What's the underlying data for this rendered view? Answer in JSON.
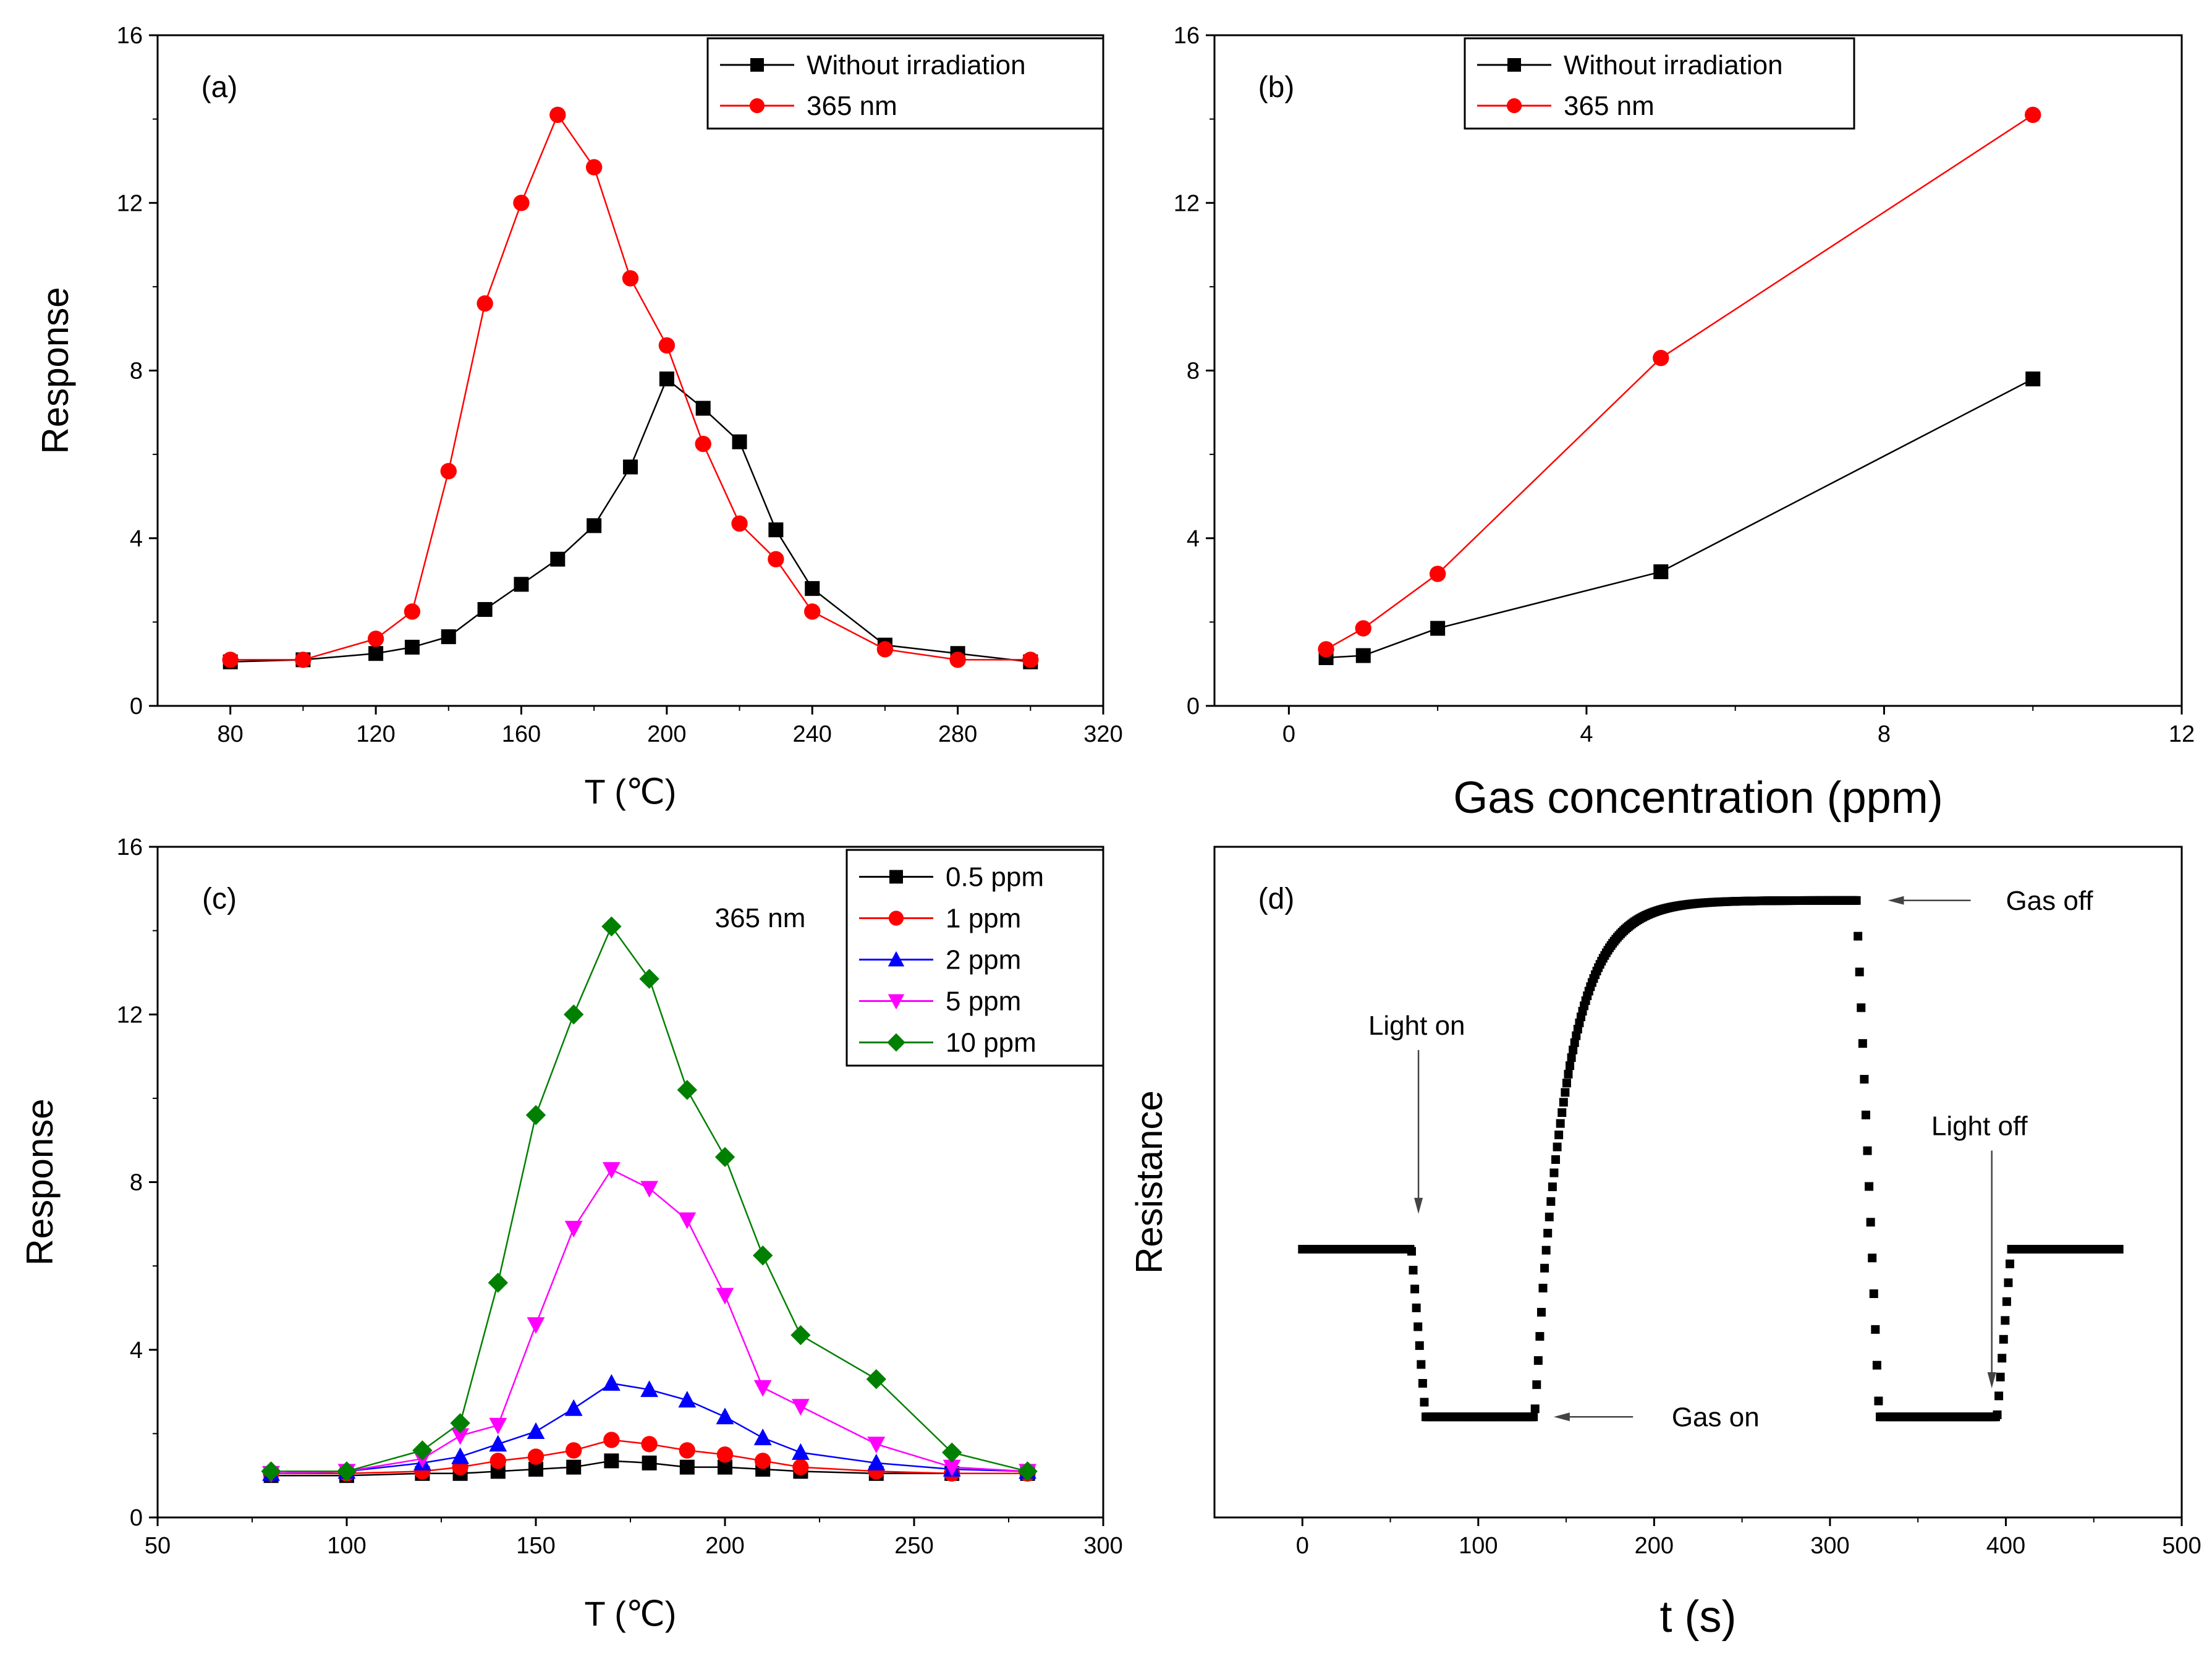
{
  "chart_data": [
    {
      "id": "a",
      "type": "line",
      "panel_label": "(a)",
      "xlabel": "T (℃)",
      "ylabel": "Response",
      "xlim": [
        60,
        320
      ],
      "ylim": [
        0,
        16
      ],
      "xticks": [
        80,
        120,
        160,
        200,
        240,
        280,
        320
      ],
      "yticks": [
        0,
        4,
        8,
        12,
        16
      ],
      "legend_position": "top-right",
      "series": [
        {
          "name": "Without irradiation",
          "color": "#000000",
          "marker": "square",
          "x": [
            80,
            100,
            120,
            130,
            140,
            150,
            160,
            170,
            180,
            190,
            200,
            210,
            220,
            230,
            240,
            260,
            280,
            300
          ],
          "y": [
            1.05,
            1.1,
            1.25,
            1.4,
            1.65,
            2.3,
            2.9,
            3.5,
            4.3,
            5.7,
            7.8,
            7.1,
            6.3,
            4.2,
            2.8,
            1.45,
            1.25,
            1.05
          ]
        },
        {
          "name": "365 nm",
          "color": "#ff0000",
          "marker": "circle",
          "x": [
            80,
            100,
            120,
            130,
            140,
            150,
            160,
            170,
            180,
            190,
            200,
            210,
            220,
            230,
            240,
            260,
            280,
            300
          ],
          "y": [
            1.1,
            1.1,
            1.6,
            2.25,
            5.6,
            9.6,
            12.0,
            14.1,
            12.85,
            10.2,
            8.6,
            6.25,
            4.35,
            3.5,
            2.25,
            1.35,
            1.1,
            1.1
          ]
        }
      ]
    },
    {
      "id": "b",
      "type": "line",
      "panel_label": "(b)",
      "xlabel": "Gas concentration (ppm)",
      "ylabel": "",
      "xlim": [
        -1,
        12
      ],
      "ylim": [
        0,
        16
      ],
      "xticks": [
        0,
        4,
        8,
        12
      ],
      "yticks": [
        0,
        4,
        8,
        12,
        16
      ],
      "legend_position": "top-left",
      "series": [
        {
          "name": "Without irradiation",
          "color": "#000000",
          "marker": "square",
          "x": [
            0.5,
            1,
            2,
            5,
            10
          ],
          "y": [
            1.15,
            1.2,
            1.85,
            3.2,
            7.8
          ]
        },
        {
          "name": "365 nm",
          "color": "#ff0000",
          "marker": "circle",
          "x": [
            0.5,
            1,
            2,
            5,
            10
          ],
          "y": [
            1.35,
            1.85,
            3.15,
            8.3,
            14.1
          ]
        }
      ]
    },
    {
      "id": "c",
      "type": "line",
      "panel_label": "(c)",
      "annotation": "365 nm",
      "xlabel": "T (℃)",
      "ylabel": "Response",
      "xlim": [
        50,
        300
      ],
      "ylim": [
        0,
        16
      ],
      "xticks": [
        50,
        100,
        150,
        200,
        250,
        300
      ],
      "yticks": [
        0,
        4,
        8,
        12,
        16
      ],
      "legend_position": "top-right",
      "series": [
        {
          "name": "0.5 ppm",
          "color": "#000000",
          "marker": "square",
          "x": [
            80,
            100,
            120,
            130,
            140,
            150,
            160,
            170,
            180,
            190,
            200,
            210,
            220,
            240,
            260,
            280
          ],
          "y": [
            1.0,
            1.0,
            1.05,
            1.05,
            1.1,
            1.15,
            1.2,
            1.35,
            1.3,
            1.2,
            1.2,
            1.15,
            1.1,
            1.05,
            1.05,
            1.05
          ]
        },
        {
          "name": "1 ppm",
          "color": "#ff0000",
          "marker": "circle",
          "x": [
            80,
            100,
            120,
            130,
            140,
            150,
            160,
            170,
            180,
            190,
            200,
            210,
            220,
            240,
            260,
            280
          ],
          "y": [
            1.05,
            1.05,
            1.1,
            1.2,
            1.35,
            1.45,
            1.6,
            1.85,
            1.75,
            1.6,
            1.5,
            1.35,
            1.2,
            1.1,
            1.05,
            1.05
          ]
        },
        {
          "name": "2 ppm",
          "color": "#0000ff",
          "marker": "triangle-up",
          "x": [
            80,
            100,
            120,
            130,
            140,
            150,
            160,
            170,
            180,
            190,
            200,
            210,
            220,
            240,
            260,
            280
          ],
          "y": [
            1.05,
            1.1,
            1.3,
            1.45,
            1.75,
            2.05,
            2.6,
            3.2,
            3.05,
            2.8,
            2.4,
            1.9,
            1.55,
            1.3,
            1.15,
            1.1
          ]
        },
        {
          "name": "5 ppm",
          "color": "#ff00ff",
          "marker": "triangle-down",
          "x": [
            80,
            100,
            120,
            130,
            140,
            150,
            160,
            170,
            180,
            190,
            200,
            210,
            220,
            240,
            260,
            280
          ],
          "y": [
            1.05,
            1.1,
            1.4,
            1.95,
            2.2,
            4.6,
            6.9,
            8.3,
            7.85,
            7.1,
            5.3,
            3.1,
            2.65,
            1.75,
            1.2,
            1.1
          ]
        },
        {
          "name": "10 ppm",
          "color": "#008000",
          "marker": "diamond",
          "x": [
            80,
            100,
            120,
            130,
            140,
            150,
            160,
            170,
            180,
            190,
            200,
            210,
            220,
            240,
            260,
            280
          ],
          "y": [
            1.1,
            1.1,
            1.6,
            2.25,
            5.6,
            9.6,
            12.0,
            14.1,
            12.85,
            10.2,
            8.6,
            6.25,
            4.35,
            3.3,
            1.55,
            1.1
          ]
        }
      ]
    },
    {
      "id": "d",
      "type": "scatter",
      "panel_label": "(d)",
      "xlabel": "t (s)",
      "ylabel": "Resistance",
      "xlim": [
        -50,
        500
      ],
      "ylim": [
        0,
        1
      ],
      "y_relative": true,
      "xticks": [
        0,
        100,
        200,
        300,
        400,
        500
      ],
      "yticks": [],
      "levels": {
        "baseline": 0.4,
        "light_on": 0.15,
        "gas_on_peak": 0.92
      },
      "events": {
        "light_on": 67,
        "gas_on": 132,
        "gas_off": 315,
        "light_off": 395
      },
      "annotations": [
        {
          "text": "Light on",
          "x": 65,
          "y": 0.72,
          "arrow_to_y": 0.46,
          "arrow": "down"
        },
        {
          "text": "Gas on",
          "x": 210,
          "y": 0.15,
          "arrow_from_x": 188,
          "arrow_to_x": 145,
          "arrow": "left"
        },
        {
          "text": "Gas off",
          "x": 400,
          "y": 0.92,
          "arrow_from_x": 380,
          "arrow_to_x": 335,
          "arrow": "left"
        },
        {
          "text": "Light off",
          "x": 385,
          "y": 0.57,
          "arrow_to_y": 0.2,
          "arrow": "down"
        }
      ],
      "series": [
        {
          "name": "Resistance",
          "color": "#000000",
          "marker": "square"
        }
      ]
    }
  ]
}
